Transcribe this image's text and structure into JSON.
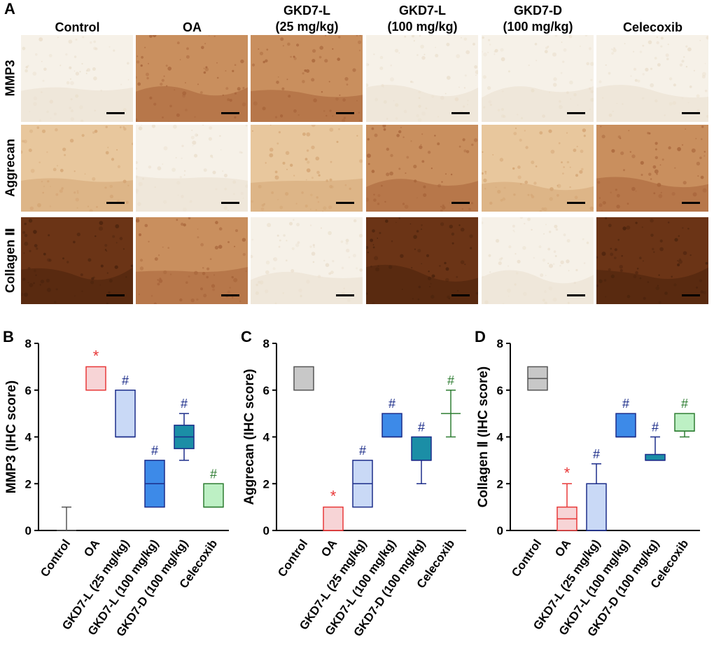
{
  "panel_A": {
    "letter": "A",
    "columns": [
      "Control",
      "OA",
      "GKD7-L\n(25 mg/kg)",
      "GKD7-L\n(100 mg/kg)",
      "GKD7-D\n(100 mg/kg)",
      "Celecoxib"
    ],
    "rows": [
      "MMP3",
      "Aggrecan",
      "Collagen Ⅱ"
    ]
  },
  "colors": {
    "control": "#c8c8c8",
    "oa": "#f7d4d6",
    "gkd7l25": "#c9d9f6",
    "gkd7l100": "#3d8ae8",
    "gkd7d100": "#1b8ea6",
    "celecoxib": "#bdf0c4",
    "star_red": "#e83838",
    "hash_blue": "#1c2d8a",
    "hash_green": "#2e7d32"
  },
  "chart_data": [
    {
      "letter": "B",
      "type": "box",
      "ylabel": "MMP3 (IHC score)",
      "ylim": [
        0,
        8
      ],
      "yticks": [
        0,
        2,
        4,
        6,
        8
      ],
      "categories": [
        "Control",
        "OA",
        "GKD7-L (25 mg/kg)",
        "GKD7-L (100 mg/kg)",
        "GKD7-D (100 mg/kg)",
        "Celecoxib"
      ],
      "boxes": [
        {
          "min": 0,
          "q1": 0,
          "median": 0,
          "q3": 0,
          "max": 1,
          "mark": ""
        },
        {
          "min": 6,
          "q1": 6,
          "median": 6,
          "q3": 7,
          "max": 7,
          "mark": "*"
        },
        {
          "min": 4,
          "q1": 4,
          "median": 4,
          "q3": 6,
          "max": 6,
          "mark": "#"
        },
        {
          "min": 1,
          "q1": 1,
          "median": 2,
          "q3": 3,
          "max": 3,
          "mark": "#"
        },
        {
          "min": 3,
          "q1": 3.5,
          "median": 4,
          "q3": 4.5,
          "max": 5,
          "mark": "#"
        },
        {
          "min": 1,
          "q1": 1,
          "median": 1,
          "q3": 2,
          "max": 2,
          "mark": "#"
        }
      ]
    },
    {
      "letter": "C",
      "type": "box",
      "ylabel": "Aggrecan (IHC score)",
      "ylim": [
        0,
        8
      ],
      "yticks": [
        0,
        2,
        4,
        6,
        8
      ],
      "categories": [
        "Control",
        "OA",
        "GKD7-L (25 mg/kg)",
        "GKD7-L (100 mg/kg)",
        "GKD7-D (100 mg/kg)",
        "Celecoxib"
      ],
      "boxes": [
        {
          "min": 6,
          "q1": 6,
          "median": 6,
          "q3": 7,
          "max": 7,
          "mark": ""
        },
        {
          "min": 0,
          "q1": 0,
          "median": 0,
          "q3": 1,
          "max": 1,
          "mark": "*"
        },
        {
          "min": 1,
          "q1": 1,
          "median": 2,
          "q3": 3,
          "max": 3,
          "mark": "#"
        },
        {
          "min": 4,
          "q1": 4,
          "median": 4,
          "q3": 5,
          "max": 5,
          "mark": "#"
        },
        {
          "min": 2,
          "q1": 3,
          "median": 3,
          "q3": 4,
          "max": 4,
          "mark": "#"
        },
        {
          "min": 4,
          "q1": 5,
          "median": 5,
          "q3": 5,
          "max": 6,
          "mark": "#"
        }
      ]
    },
    {
      "letter": "D",
      "type": "box",
      "ylabel": "Collagen Ⅱ (IHC score)",
      "ylim": [
        0,
        8
      ],
      "yticks": [
        0,
        2,
        4,
        6,
        8
      ],
      "categories": [
        "Control",
        "OA",
        "GKD7-L (25 mg/kg)",
        "GKD7-L (100 mg/kg)",
        "GKD7-D (100 mg/kg)",
        "Celecoxib"
      ],
      "boxes": [
        {
          "min": 6,
          "q1": 6,
          "median": 6.5,
          "q3": 7,
          "max": 7,
          "mark": ""
        },
        {
          "min": 0,
          "q1": 0,
          "median": 0.5,
          "q3": 1,
          "max": 2,
          "mark": "*"
        },
        {
          "min": 0,
          "q1": 0,
          "median": 0,
          "q3": 2,
          "max": 2.85,
          "mark": "#"
        },
        {
          "min": 4,
          "q1": 4,
          "median": 4,
          "q3": 5,
          "max": 5,
          "mark": "#"
        },
        {
          "min": 3,
          "q1": 3,
          "median": 3,
          "q3": 3.25,
          "max": 4,
          "mark": "#"
        },
        {
          "min": 4,
          "q1": 4.25,
          "median": 4.25,
          "q3": 5,
          "max": 5,
          "mark": "#"
        }
      ]
    }
  ]
}
